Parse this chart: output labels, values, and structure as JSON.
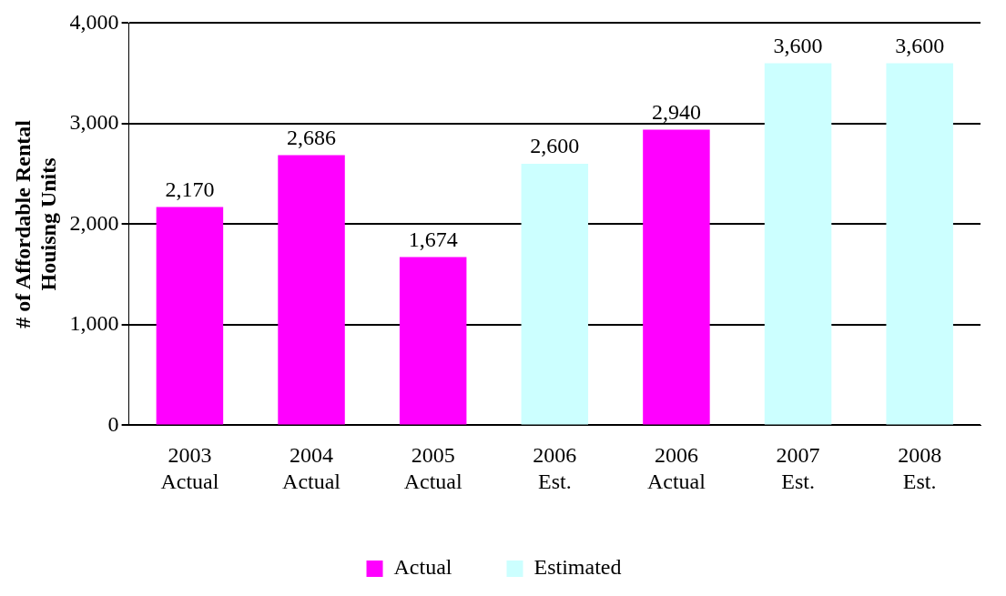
{
  "chart_data": {
    "type": "bar",
    "ylabel": "# of Affordable Rental\nHouisng Units",
    "categories": [
      "2003\nActual",
      "2004\nActual",
      "2005\nActual",
      "2006\nEst.",
      "2006\nActual",
      "2007\nEst.",
      "2008\nEst."
    ],
    "series": [
      {
        "name": "Actual",
        "color": "#ff00ff",
        "values": [
          2170,
          2686,
          1674,
          null,
          2940,
          null,
          null
        ],
        "value_labels": [
          "2,170",
          "2,686",
          "1,674",
          null,
          "2,940",
          null,
          null
        ]
      },
      {
        "name": "Estimated",
        "color": "#ccffff",
        "values": [
          null,
          null,
          null,
          2600,
          null,
          3600,
          3600
        ],
        "value_labels": [
          null,
          null,
          null,
          "2,600",
          null,
          "3,600",
          "3,600"
        ]
      }
    ],
    "ylim": [
      0,
      4000
    ],
    "yticks": [
      0,
      {
        "value": 1000,
        "label": "1,000"
      },
      {
        "value": 2000,
        "label": "2,000"
      },
      {
        "value": 3000,
        "label": "3,000"
      },
      {
        "value": 4000,
        "label": "4,000"
      }
    ],
    "grid": "y",
    "legend": "bottom"
  }
}
